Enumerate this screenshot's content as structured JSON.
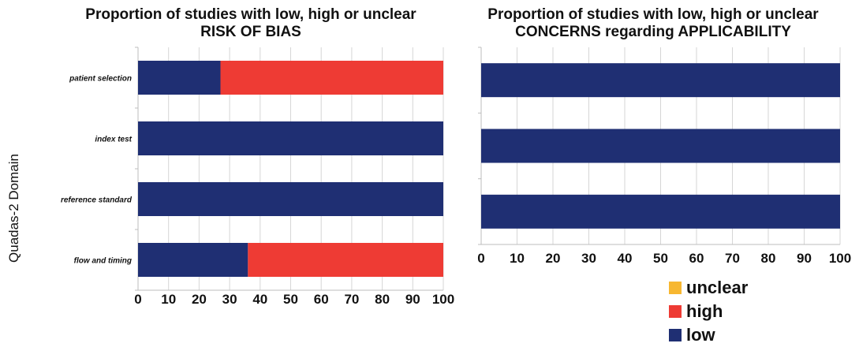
{
  "chart_data": [
    {
      "type": "bar",
      "orientation": "horizontal",
      "stacked": true,
      "title": "Proportion of studies with low, high or unclear",
      "subtitle": "RISK OF BIAS",
      "ylabel": "Quadas-2 Domain",
      "categories": [
        "patient selection",
        "index test",
        "reference standard",
        "flow and timing"
      ],
      "series": [
        {
          "name": "low",
          "color": "#1f2f73",
          "values": [
            27,
            100,
            100,
            36
          ]
        },
        {
          "name": "high",
          "color": "#ee3b34",
          "values": [
            73,
            0,
            0,
            64
          ]
        },
        {
          "name": "unclear",
          "color": "#f7b731",
          "values": [
            0,
            0,
            0,
            0
          ]
        }
      ],
      "xlim": [
        0,
        100
      ],
      "xticks": [
        "0",
        "10",
        "20",
        "30",
        "40",
        "50",
        "60",
        "70",
        "80",
        "90",
        "100"
      ],
      "grid": "vertical"
    },
    {
      "type": "bar",
      "orientation": "horizontal",
      "stacked": true,
      "title": "Proportion of studies with low, high or unclear",
      "subtitle": "CONCERNS regarding APPLICABILITY",
      "categories": [
        "patient selection",
        "index test",
        "reference standard"
      ],
      "series": [
        {
          "name": "low",
          "color": "#1f2f73",
          "values": [
            100,
            100,
            100
          ]
        },
        {
          "name": "high",
          "color": "#ee3b34",
          "values": [
            0,
            0,
            0
          ]
        },
        {
          "name": "unclear",
          "color": "#f7b731",
          "values": [
            0,
            0,
            0
          ]
        }
      ],
      "xlim": [
        0,
        100
      ],
      "xticks": [
        "0",
        "10",
        "20",
        "30",
        "40",
        "50",
        "60",
        "70",
        "80",
        "90",
        "100"
      ],
      "grid": "vertical"
    }
  ],
  "legend": {
    "position": "bottom-right",
    "items": [
      {
        "label": "unclear",
        "color": "#f7b731"
      },
      {
        "label": "high",
        "color": "#ee3b34"
      },
      {
        "label": "low",
        "color": "#1f2f73"
      }
    ]
  }
}
